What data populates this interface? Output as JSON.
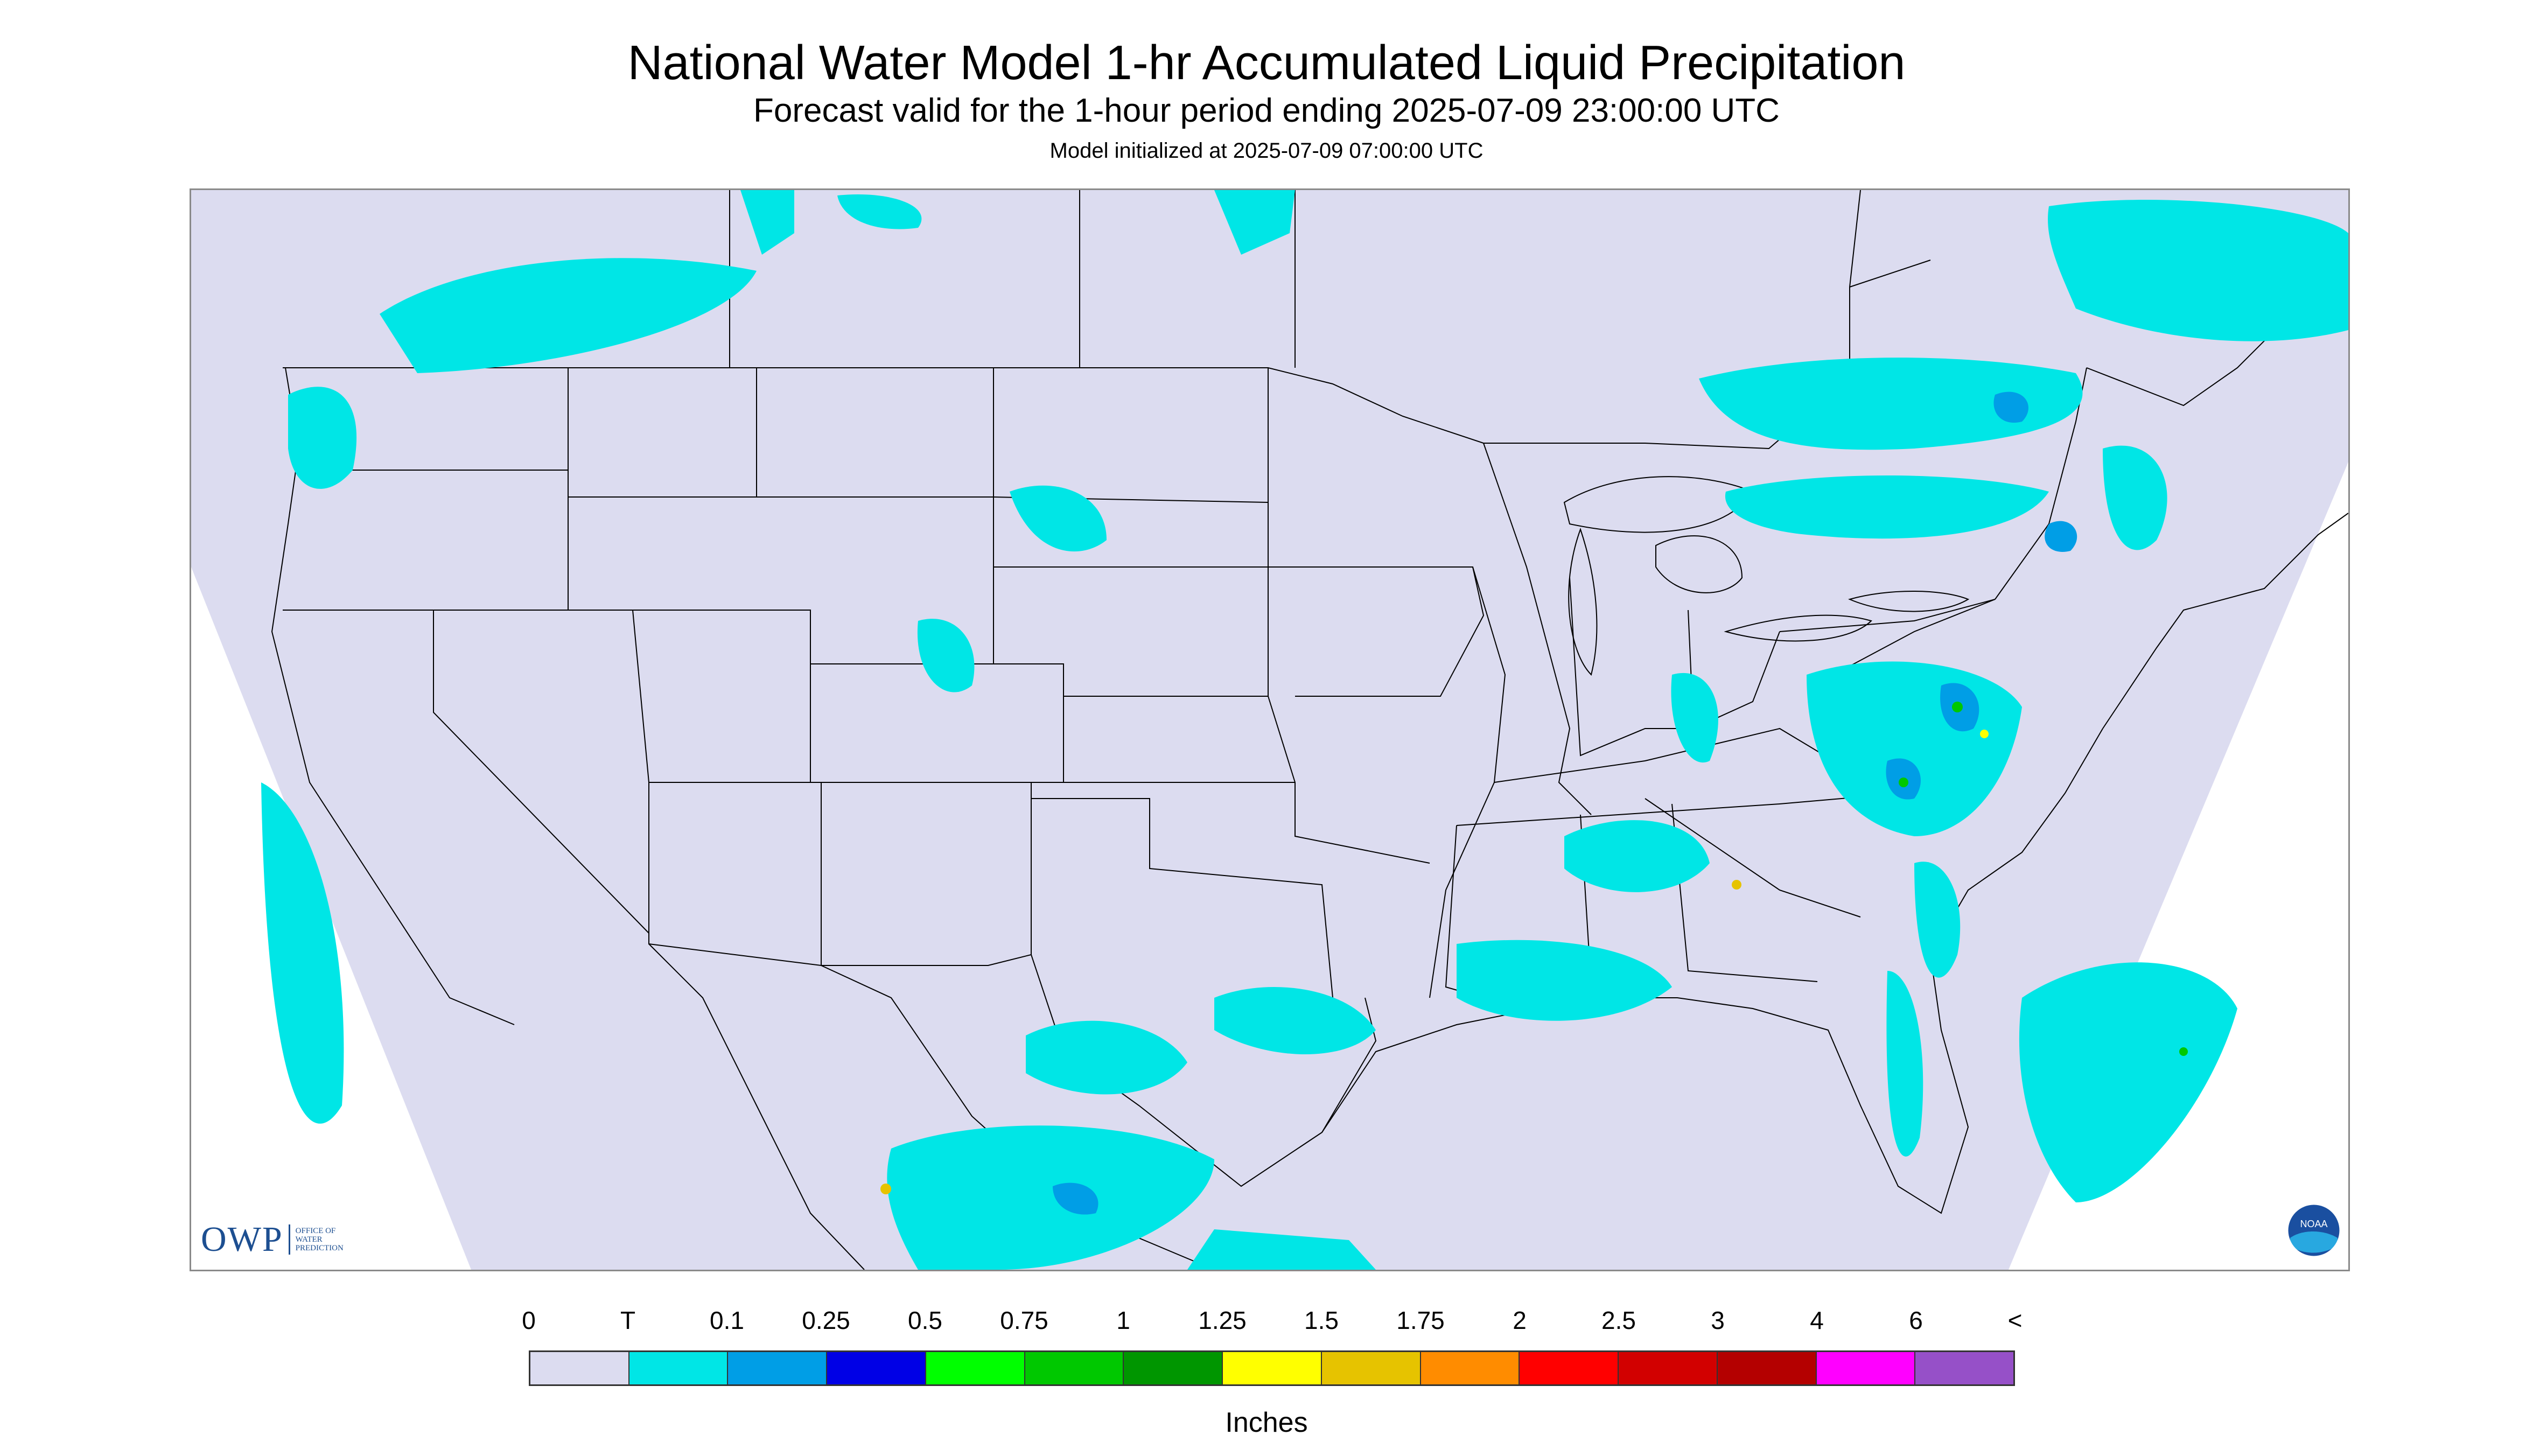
{
  "title": "National Water Model 1-hr Accumulated Liquid Precipitation",
  "subtitle": "Forecast valid for the 1-hour period ending 2025-07-09 23:00:00 UTC",
  "init_text": "Model initialized at 2025-07-09 07:00:00 UTC",
  "logos": {
    "owp_mark": "OWP",
    "owp_subtext": "OFFICE OF WATER PREDICTION",
    "noaa": "NOAA"
  },
  "legend": {
    "units": "Inches",
    "labels": [
      "0",
      "T",
      "0.1",
      "0.25",
      "0.5",
      "0.75",
      "1",
      "1.25",
      "1.5",
      "1.75",
      "2",
      "2.5",
      "3",
      "4",
      "6",
      "<"
    ],
    "colors": [
      "#dcdcf0",
      "#00e6e6",
      "#009ee6",
      "#0000e6",
      "#00ff00",
      "#00c800",
      "#009600",
      "#ffff00",
      "#e6c300",
      "#ff8c00",
      "#ff0000",
      "#d20000",
      "#b40000",
      "#ff00ff",
      "#9650c8"
    ]
  },
  "map_colors": {
    "domain_fill": "#dcdcf0",
    "outside_fill": "#ffffff",
    "border": "#000000"
  }
}
